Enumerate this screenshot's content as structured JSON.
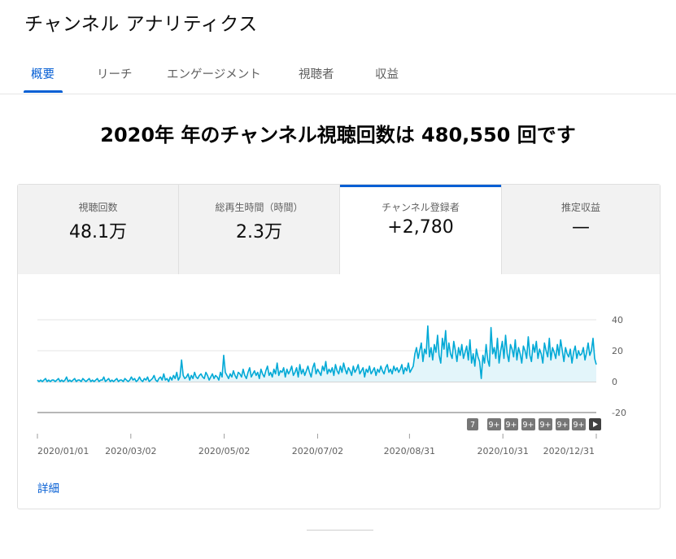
{
  "page": {
    "title": "チャンネル アナリティクス"
  },
  "tabs": [
    {
      "label": "概要",
      "active": true
    },
    {
      "label": "リーチ"
    },
    {
      "label": "エンゲージメント"
    },
    {
      "label": "視聴者"
    },
    {
      "label": "収益"
    }
  ],
  "headline": "2020年 年のチャンネル視聴回数は 480,550 回です",
  "metrics": [
    {
      "label": "視聴回数",
      "value": "48.1万"
    },
    {
      "label": "総再生時間（時間）",
      "value": "2.3万"
    },
    {
      "label": "チャンネル登録者",
      "value": "+2,780",
      "active": true
    },
    {
      "label": "推定収益",
      "value": "—"
    }
  ],
  "colors": {
    "accent": "#065fd4",
    "line": "#00a9d6",
    "fill": "#e3f5fa"
  },
  "markers": [
    "7",
    "9+",
    "9+",
    "9+",
    "9+",
    "9+",
    "9+"
  ],
  "marker_next_icon": "play-icon",
  "detail_link": "詳細",
  "chart_data": {
    "type": "line",
    "title": "",
    "x_ticks": [
      "2020/01/01",
      "2020/03/02",
      "2020/05/02",
      "2020/07/02",
      "2020/08/31",
      "2020/10/31",
      "2020/12/31"
    ],
    "x_range": [
      "2020/01/01",
      "2020/12/31"
    ],
    "y_ticks": [
      "40",
      "20",
      "0",
      "-20"
    ],
    "ylim": [
      -20,
      40
    ],
    "grid": true,
    "series": [
      {
        "values": [
          1,
          0,
          1,
          0,
          1,
          2,
          0,
          1,
          0,
          1,
          1,
          0,
          1,
          2,
          0,
          1,
          0,
          1,
          3,
          0,
          1,
          0,
          1,
          2,
          0,
          1,
          1,
          0,
          2,
          1,
          0,
          1,
          2,
          0,
          1,
          0,
          1,
          2,
          0,
          1,
          1,
          3,
          0,
          1,
          2,
          0,
          1,
          0,
          1,
          2,
          0,
          1,
          1,
          0,
          2,
          1,
          0,
          1,
          3,
          1,
          2,
          0,
          1,
          3,
          1,
          0,
          2,
          1,
          3,
          0,
          1,
          2,
          4,
          1,
          0,
          2,
          3,
          1,
          5,
          1,
          2,
          0,
          3,
          1,
          4,
          2,
          6,
          1,
          3,
          14,
          4,
          2,
          3,
          5,
          1,
          4,
          2,
          6,
          3,
          2,
          4,
          5,
          3,
          2,
          6,
          4,
          1,
          3,
          5,
          2,
          4,
          3,
          1,
          6,
          3,
          17,
          6,
          4,
          2,
          5,
          3,
          7,
          4,
          2,
          6,
          5,
          3,
          8,
          4,
          2,
          6,
          9,
          3,
          5,
          7,
          4,
          6,
          2,
          8,
          5,
          3,
          7,
          10,
          4,
          6,
          3,
          8,
          5,
          12,
          4,
          7,
          6,
          9,
          3,
          8,
          5,
          7,
          10,
          4,
          6,
          9,
          3,
          11,
          5,
          8,
          4,
          7,
          10,
          6,
          3,
          9,
          12,
          5,
          8,
          6,
          4,
          10,
          7,
          13,
          5,
          8,
          6,
          9,
          4,
          11,
          7,
          5,
          10,
          6,
          12,
          8,
          5,
          9,
          7,
          4,
          10,
          6,
          8,
          11,
          5,
          7,
          9,
          3,
          8,
          6,
          10,
          5,
          7,
          9,
          4,
          8,
          6,
          10,
          7,
          5,
          9,
          11,
          6,
          8,
          5,
          10,
          7,
          9,
          6,
          8,
          11,
          5,
          9,
          7,
          12,
          6,
          8,
          10,
          18,
          22,
          15,
          20,
          25,
          13,
          21,
          18,
          36,
          16,
          22,
          14,
          24,
          19,
          30,
          17,
          12,
          28,
          21,
          33,
          16,
          25,
          18,
          15,
          26,
          20,
          13,
          22,
          17,
          24,
          15,
          19,
          23,
          14,
          27,
          12,
          18,
          10,
          21,
          16,
          13,
          2,
          17,
          12,
          24,
          14,
          10,
          35,
          18,
          22,
          15,
          28,
          12,
          20,
          26,
          15,
          30,
          18,
          13,
          24,
          21,
          16,
          27,
          14,
          22,
          18,
          12,
          23,
          20,
          15,
          29,
          17,
          13,
          24,
          19,
          26,
          15,
          21,
          18,
          12,
          25,
          20,
          16,
          28,
          14,
          22,
          19,
          15,
          24,
          17,
          27,
          20,
          13,
          22,
          18,
          16,
          21,
          12,
          19,
          23,
          15,
          20,
          17,
          18,
          22,
          14,
          19,
          25,
          17,
          20,
          28,
          15,
          11
        ]
      }
    ]
  }
}
